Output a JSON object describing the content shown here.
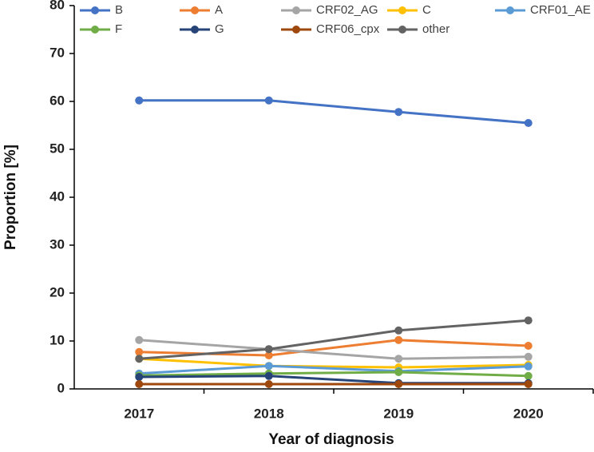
{
  "chart_data": {
    "type": "line",
    "x_label": "Year of diagnosis",
    "y_label": "Proportion [%]",
    "categories": [
      "2017",
      "2018",
      "2019",
      "2020"
    ],
    "ylim": [
      0,
      80
    ],
    "yticks": [
      0,
      10,
      20,
      30,
      40,
      50,
      60,
      70,
      80
    ],
    "grid": false,
    "legend": "top",
    "series": [
      {
        "name": "B",
        "color": "#4472c4",
        "values": [
          60.2,
          60.2,
          57.8,
          55.5
        ]
      },
      {
        "name": "A",
        "color": "#ed7d31",
        "values": [
          7.7,
          7.0,
          10.2,
          9.0
        ]
      },
      {
        "name": "CRF02_AG",
        "color": "#a5a5a5",
        "values": [
          10.2,
          8.3,
          6.3,
          6.7
        ]
      },
      {
        "name": "C",
        "color": "#ffc000",
        "values": [
          6.3,
          4.8,
          4.5,
          5.0
        ]
      },
      {
        "name": "CRF01_AE",
        "color": "#5b9bd5",
        "values": [
          3.2,
          4.8,
          3.7,
          4.7
        ]
      },
      {
        "name": "F",
        "color": "#70ad47",
        "values": [
          2.8,
          3.2,
          3.5,
          2.7
        ]
      },
      {
        "name": "G",
        "color": "#264478",
        "values": [
          2.5,
          2.7,
          1.2,
          1.2
        ]
      },
      {
        "name": "CRF06_cpx",
        "color": "#9e480e",
        "values": [
          1.0,
          1.0,
          1.0,
          1.0
        ]
      },
      {
        "name": "other",
        "color": "#636363",
        "values": [
          6.3,
          8.3,
          12.2,
          14.3
        ]
      }
    ]
  }
}
